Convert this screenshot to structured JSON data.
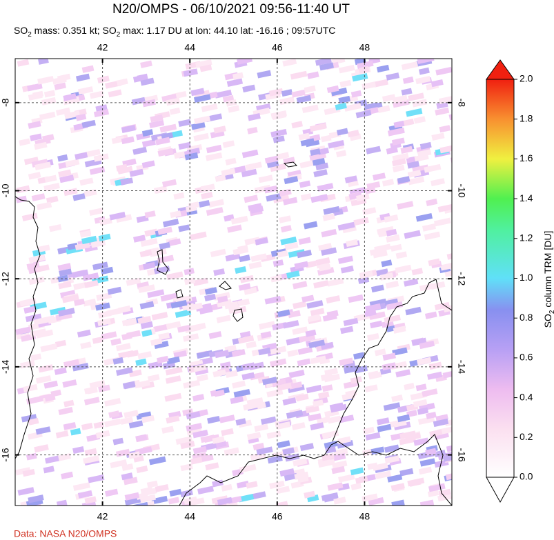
{
  "title": "N20/OMPS - 06/10/2021 09:56-11:40 UT",
  "subtitle_parts": [
    {
      "text": "SO"
    },
    {
      "text": "2",
      "sub": true
    },
    {
      "text": " mass: 0.351 kt; SO"
    },
    {
      "text": "2",
      "sub": true
    },
    {
      "text": " max: 1.17 DU at lon: 44.10 lat: -16.16 ; 09:57UTC"
    }
  ],
  "map": {
    "lon_lim": [
      40,
      50
    ],
    "lat_lim": [
      -7,
      -17.15
    ],
    "lon_ticks": [
      42,
      44,
      46,
      48
    ],
    "lat_ticks": [
      -8,
      -10,
      -12,
      -14,
      -16
    ],
    "grid": true
  },
  "colorbar": {
    "lim": [
      0,
      2
    ],
    "ticks": [
      {
        "value": 0,
        "label": "0.0"
      },
      {
        "value": 0.2,
        "label": "0.2"
      },
      {
        "value": 0.4,
        "label": "0.4"
      },
      {
        "value": 0.6,
        "label": "0.6"
      },
      {
        "value": 0.8,
        "label": "0.8"
      },
      {
        "value": 1,
        "label": "1.0"
      },
      {
        "value": 1.2,
        "label": "1.2"
      },
      {
        "value": 1.4,
        "label": "1.4"
      },
      {
        "value": 1.6,
        "label": "1.6"
      },
      {
        "value": 1.8,
        "label": "1.8"
      },
      {
        "value": 2,
        "label": "2.0"
      }
    ],
    "label_parts": [
      {
        "text": "SO"
      },
      {
        "text": "2",
        "sub": true
      },
      {
        "text": " column TRM [DU]"
      }
    ]
  },
  "credit": "Data: NASA N20/OMPS"
}
